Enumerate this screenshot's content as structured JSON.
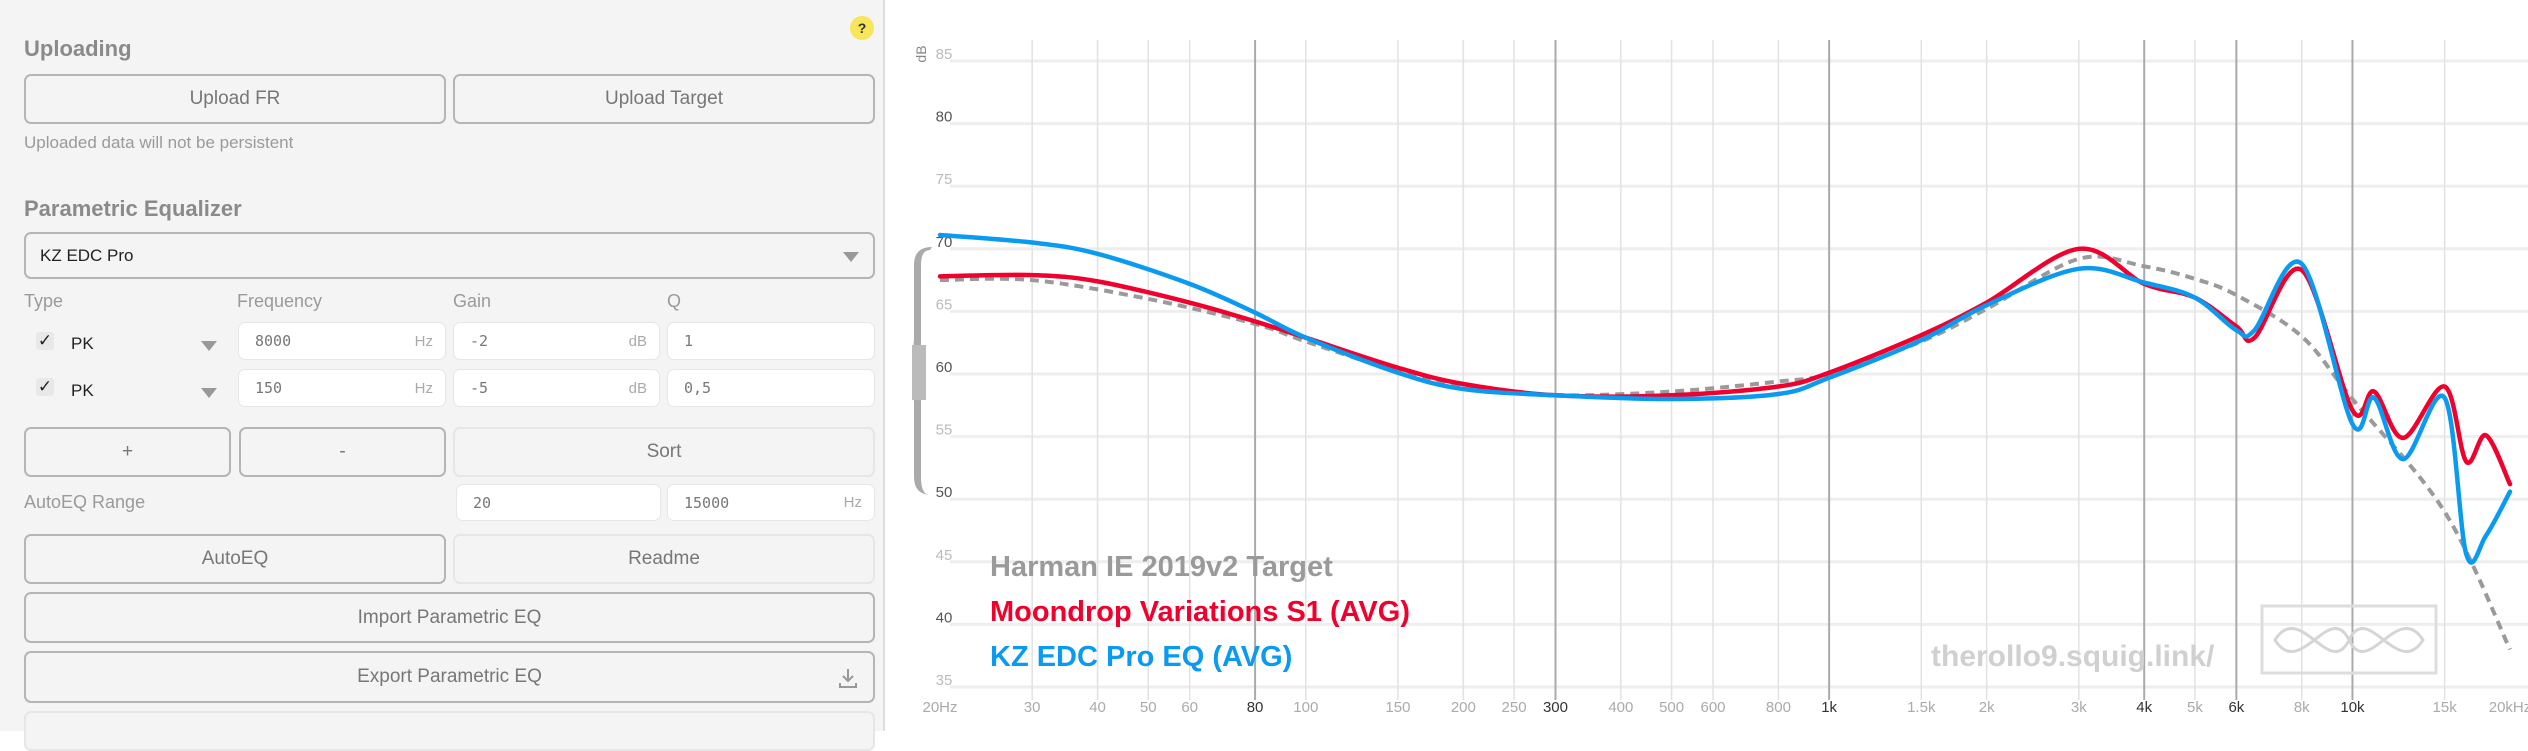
{
  "help_badge": "?",
  "uploading": {
    "title": "Uploading",
    "upload_fr": "Upload FR",
    "upload_target": "Upload Target",
    "note": "Uploaded data will not be persistent"
  },
  "peq": {
    "title": "Parametric Equalizer",
    "selected_model": "KZ EDC Pro",
    "headers": {
      "type": "Type",
      "frequency": "Frequency",
      "gain": "Gain",
      "q": "Q"
    },
    "filters": [
      {
        "enabled": true,
        "type": "PK",
        "frequency": "8000",
        "freq_unit": "Hz",
        "gain": "-2",
        "gain_unit": "dB",
        "q": "1"
      },
      {
        "enabled": true,
        "type": "PK",
        "frequency": "150",
        "freq_unit": "Hz",
        "gain": "-5",
        "gain_unit": "dB",
        "q": "0,5"
      }
    ],
    "add": "+",
    "remove": "-",
    "sort": "Sort",
    "autoeq_range_label": "AutoEQ Range",
    "autoeq_range_min": "20",
    "autoeq_range_max": "15000",
    "autoeq_range_unit": "Hz",
    "autoeq": "AutoEQ",
    "readme": "Readme",
    "import": "Import Parametric EQ",
    "export": "Export Parametric EQ",
    "check_glyph": "✓"
  },
  "chart_data": {
    "type": "line",
    "xscale": "log",
    "xlim": [
      20,
      20000
    ],
    "ylim": [
      35,
      85
    ],
    "ylabel": "dB",
    "grid": true,
    "legend_placement": "bottom-left",
    "xticks": [
      "20Hz",
      "30",
      "40",
      "50",
      "60",
      "80",
      "100",
      "150",
      "200",
      "250",
      "300",
      "400",
      "500",
      "600",
      "800",
      "1k",
      "1.5k",
      "2k",
      "3k",
      "4k",
      "5k",
      "6k",
      "8k",
      "10k",
      "15k",
      "20kHz"
    ],
    "xtick_values": [
      20,
      30,
      40,
      50,
      60,
      80,
      100,
      150,
      200,
      250,
      300,
      400,
      500,
      600,
      800,
      1000,
      1500,
      2000,
      3000,
      4000,
      5000,
      6000,
      8000,
      10000,
      15000,
      20000
    ],
    "major_xticks": [
      80,
      300,
      1000,
      4000,
      6000,
      10000
    ],
    "yticks": [
      85,
      80,
      75,
      70,
      65,
      60,
      55,
      50,
      45,
      40,
      35
    ],
    "watermark": "therollo9.squig.link/",
    "series": [
      {
        "name": "Harman IE 2019v2 Target",
        "color": "#9a9a9a",
        "dashed": true,
        "points": [
          [
            20,
            67.5
          ],
          [
            30,
            67.5
          ],
          [
            50,
            66
          ],
          [
            80,
            64
          ],
          [
            100,
            62.6
          ],
          [
            150,
            60.2
          ],
          [
            200,
            58.9
          ],
          [
            300,
            58.3
          ],
          [
            500,
            58.6
          ],
          [
            800,
            59.4
          ],
          [
            1000,
            60
          ],
          [
            1500,
            62.6
          ],
          [
            2000,
            65.2
          ],
          [
            3000,
            69.2
          ],
          [
            4000,
            68.6
          ],
          [
            5000,
            67.6
          ],
          [
            6000,
            66.3
          ],
          [
            8000,
            63
          ],
          [
            10000,
            58
          ],
          [
            15000,
            49
          ],
          [
            20000,
            38
          ]
        ]
      },
      {
        "name": "Moondrop Variations S1 (AVG)",
        "color": "#f0002d",
        "dashed": false,
        "points": [
          [
            20,
            67.8
          ],
          [
            30,
            67.9
          ],
          [
            40,
            67.4
          ],
          [
            60,
            65.7
          ],
          [
            80,
            64.2
          ],
          [
            100,
            62.9
          ],
          [
            150,
            60.5
          ],
          [
            200,
            59.2
          ],
          [
            300,
            58.3
          ],
          [
            500,
            58.3
          ],
          [
            800,
            59
          ],
          [
            1000,
            60.1
          ],
          [
            1500,
            63.1
          ],
          [
            2000,
            65.7
          ],
          [
            3000,
            70
          ],
          [
            4000,
            67.2
          ],
          [
            5000,
            66.1
          ],
          [
            6000,
            63.8
          ],
          [
            6500,
            62.9
          ],
          [
            8000,
            68.3
          ],
          [
            10000,
            57.1
          ],
          [
            11000,
            58.6
          ],
          [
            12500,
            54.9
          ],
          [
            15000,
            59
          ],
          [
            16500,
            53
          ],
          [
            18000,
            55.1
          ],
          [
            20000,
            51.2
          ]
        ]
      },
      {
        "name": "KZ EDC Pro EQ (AVG)",
        "color": "#0a9bf0",
        "dashed": false,
        "points": [
          [
            20,
            71.1
          ],
          [
            30,
            70.5
          ],
          [
            40,
            69.6
          ],
          [
            60,
            67.2
          ],
          [
            80,
            64.9
          ],
          [
            100,
            62.9
          ],
          [
            150,
            60.1
          ],
          [
            200,
            58.8
          ],
          [
            300,
            58.3
          ],
          [
            500,
            58
          ],
          [
            800,
            58.4
          ],
          [
            1000,
            59.7
          ],
          [
            1500,
            62.7
          ],
          [
            2000,
            65.5
          ],
          [
            3000,
            68.4
          ],
          [
            4000,
            67.3
          ],
          [
            5000,
            66.1
          ],
          [
            6000,
            63.5
          ],
          [
            6500,
            63.5
          ],
          [
            8000,
            68.8
          ],
          [
            10000,
            56
          ],
          [
            11000,
            58.1
          ],
          [
            12500,
            53.2
          ],
          [
            15000,
            58.1
          ],
          [
            16500,
            45.6
          ],
          [
            18000,
            47.1
          ],
          [
            20000,
            50.6
          ]
        ]
      }
    ]
  }
}
